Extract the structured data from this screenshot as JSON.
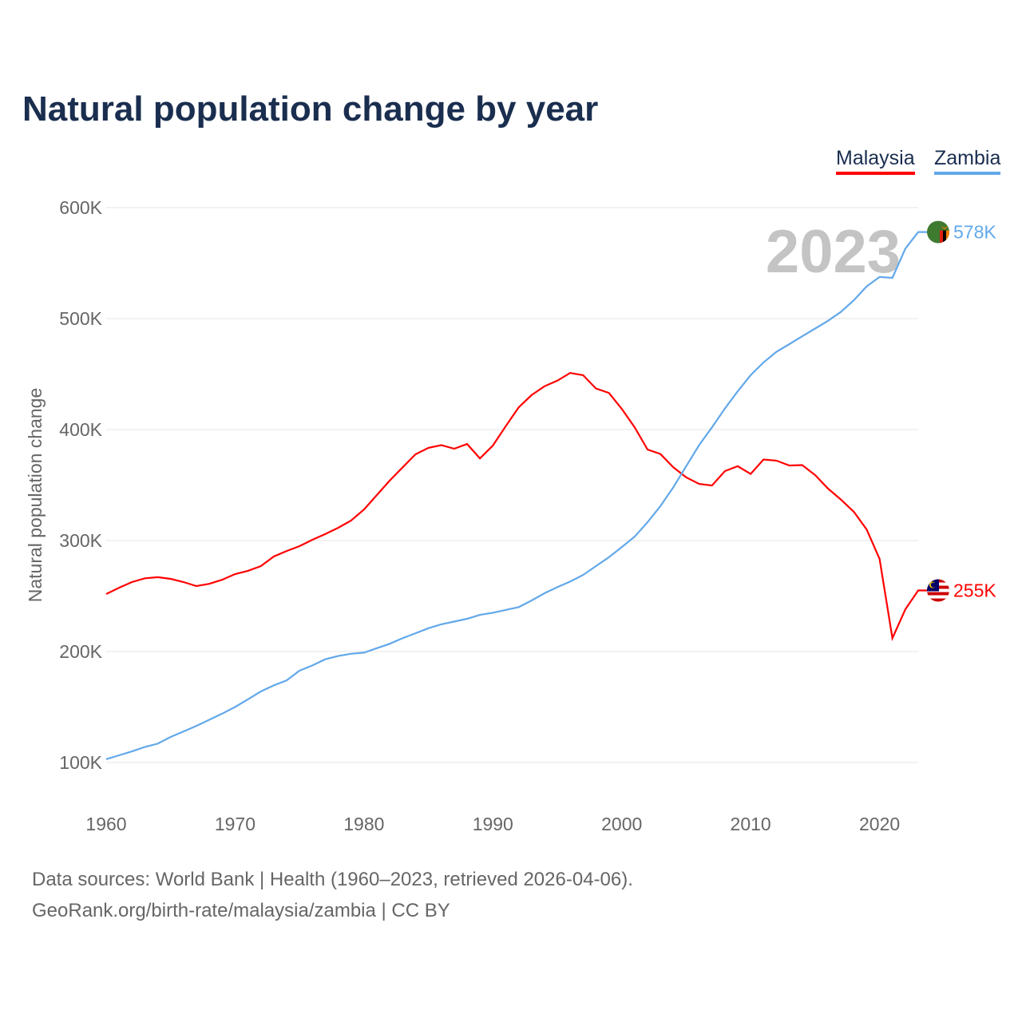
{
  "title": "Natural population change by year",
  "source_line1": "Data sources: World Bank | Health (1960–2023, retrieved 2026-04-06).",
  "source_line2": "GeoRank.org/birth-rate/malaysia/zambia | CC BY",
  "chart_data": {
    "type": "line",
    "title": "Natural population change by year",
    "xlabel": "",
    "ylabel": "Natural population change",
    "year_label": "2023",
    "xlim": [
      1960,
      2023
    ],
    "ylim": [
      100000,
      600000
    ],
    "x_ticks": [
      1960,
      1970,
      1980,
      1990,
      2000,
      2010,
      2020
    ],
    "y_ticks": [
      100000,
      200000,
      300000,
      400000,
      500000,
      600000
    ],
    "y_tick_labels": [
      "100K",
      "200K",
      "300K",
      "400K",
      "500K",
      "600K"
    ],
    "grid": true,
    "legend_position": "top-right",
    "x": [
      1960,
      1961,
      1962,
      1963,
      1964,
      1965,
      1966,
      1967,
      1968,
      1969,
      1970,
      1971,
      1972,
      1973,
      1974,
      1975,
      1976,
      1977,
      1978,
      1979,
      1980,
      1981,
      1982,
      1983,
      1984,
      1985,
      1986,
      1987,
      1988,
      1989,
      1990,
      1991,
      1992,
      1993,
      1994,
      1995,
      1996,
      1997,
      1998,
      1999,
      2000,
      2001,
      2002,
      2003,
      2004,
      2005,
      2006,
      2007,
      2008,
      2009,
      2010,
      2011,
      2012,
      2013,
      2014,
      2015,
      2016,
      2017,
      2018,
      2019,
      2020,
      2021,
      2022,
      2023
    ],
    "series": [
      {
        "name": "Malaysia",
        "color": "#ff0000",
        "end_label": "255K",
        "flag": "malaysia-flag",
        "values": [
          251800,
          257500,
          262600,
          266000,
          267000,
          265500,
          262600,
          259000,
          261000,
          264700,
          269800,
          272700,
          277000,
          285600,
          290600,
          295000,
          300700,
          305800,
          311500,
          318000,
          328000,
          341000,
          354000,
          366000,
          377700,
          383500,
          386000,
          382700,
          387000,
          374000,
          385600,
          403000,
          420000,
          431000,
          439000,
          444000,
          451000,
          449000,
          437000,
          433000,
          418700,
          402000,
          382000,
          378000,
          366000,
          357000,
          351000,
          349600,
          362600,
          367000,
          360000,
          373000,
          372000,
          367600,
          368000,
          359000,
          346800,
          337000,
          326000,
          310000,
          283500,
          212000,
          238000,
          255000
        ]
      },
      {
        "name": "Zambia",
        "color": "#62a8ea",
        "end_label": "578K",
        "flag": "zambia-flag",
        "values": [
          103000,
          106500,
          110000,
          114000,
          117000,
          123000,
          128000,
          133000,
          138500,
          144000,
          150000,
          157000,
          164000,
          169500,
          174000,
          182700,
          187500,
          193000,
          196000,
          198000,
          199000,
          203000,
          207000,
          212000,
          216500,
          221000,
          224500,
          227000,
          229500,
          233000,
          235000,
          237500,
          240000,
          246000,
          252500,
          258000,
          263000,
          269000,
          277000,
          285000,
          294000,
          303500,
          316500,
          331000,
          348000,
          367000,
          386000,
          402000,
          419000,
          434500,
          449000,
          460500,
          470000,
          477000,
          484000,
          491000,
          498000,
          506000,
          516500,
          529000,
          537500,
          536700,
          563000,
          578000
        ]
      }
    ]
  }
}
